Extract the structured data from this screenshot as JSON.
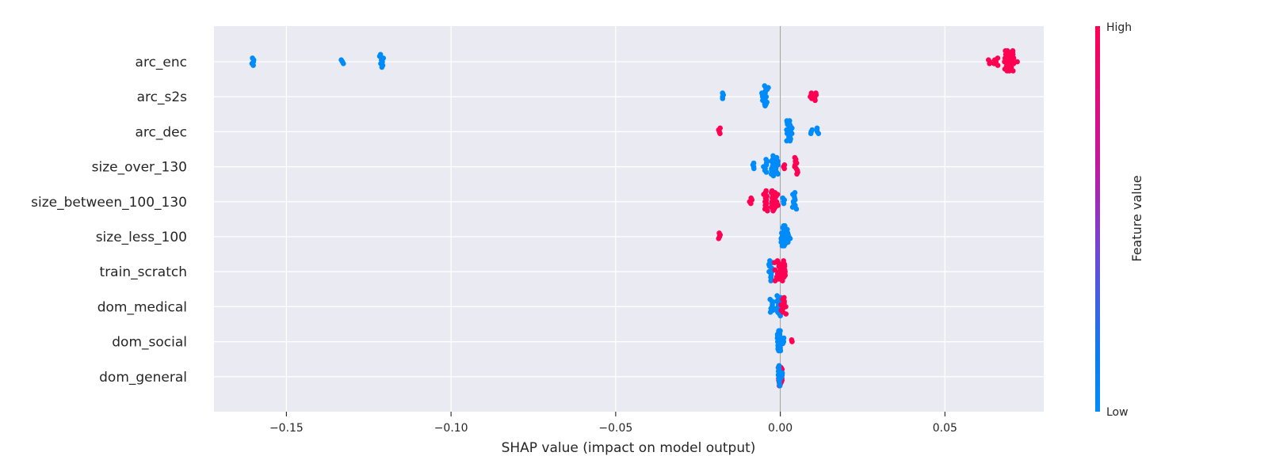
{
  "chart_data": {
    "type": "scatter",
    "subtype": "shap-beeswarm",
    "title": "",
    "xlabel": "SHAP value (impact on model output)",
    "ylabel": "",
    "xlim": [
      -0.172,
      0.08
    ],
    "x_ticks": [
      -0.15,
      -0.1,
      -0.05,
      0.0,
      0.05
    ],
    "x_tick_labels": [
      "−0.15",
      "−0.10",
      "−0.05",
      "0.00",
      "0.05"
    ],
    "grid": true,
    "features": [
      {
        "name": "arc_enc",
        "clusters": [
          {
            "x": -0.16,
            "v": "low",
            "n": 5,
            "spread": 0.0006
          },
          {
            "x": -0.133,
            "v": "low",
            "n": 3,
            "spread": 0.0004
          },
          {
            "x": -0.121,
            "v": "low",
            "n": 8,
            "spread": 0.0008
          },
          {
            "x": 0.0635,
            "v": "high",
            "n": 3,
            "spread": 0.0004
          },
          {
            "x": 0.0655,
            "v": "high",
            "n": 5,
            "spread": 0.0006
          },
          {
            "x": 0.069,
            "v": "high",
            "n": 40,
            "spread": 0.0012
          }
        ]
      },
      {
        "name": "arc_s2s",
        "clusters": [
          {
            "x": -0.0175,
            "v": "low",
            "n": 4,
            "spread": 0.0003
          },
          {
            "x": -0.005,
            "v": "low",
            "n": 22,
            "spread": 0.0008
          },
          {
            "x": 0.0095,
            "v": "high",
            "n": 4,
            "spread": 0.0004
          },
          {
            "x": 0.0105,
            "v": "high",
            "n": 5,
            "spread": 0.0004
          }
        ]
      },
      {
        "name": "arc_dec",
        "clusters": [
          {
            "x": -0.0185,
            "v": "high",
            "n": 4,
            "spread": 0.0003
          },
          {
            "x": 0.0025,
            "v": "low",
            "n": 24,
            "spread": 0.0006
          },
          {
            "x": 0.0095,
            "v": "low",
            "n": 3,
            "spread": 0.0003
          },
          {
            "x": 0.0115,
            "v": "low",
            "n": 4,
            "spread": 0.0004
          }
        ]
      },
      {
        "name": "size_over_130",
        "clusters": [
          {
            "x": -0.008,
            "v": "low",
            "n": 4,
            "spread": 0.0004
          },
          {
            "x": -0.0045,
            "v": "low",
            "n": 8,
            "spread": 0.0006
          },
          {
            "x": -0.002,
            "v": "low",
            "n": 22,
            "spread": 0.0008
          },
          {
            "x": 0.001,
            "v": "high",
            "n": 3,
            "spread": 0.0003
          },
          {
            "x": 0.0045,
            "v": "high",
            "n": 10,
            "spread": 0.0008
          }
        ]
      },
      {
        "name": "size_between_100_130",
        "clusters": [
          {
            "x": -0.009,
            "v": "high",
            "n": 4,
            "spread": 0.0004
          },
          {
            "x": -0.0045,
            "v": "high",
            "n": 12,
            "spread": 0.0006
          },
          {
            "x": -0.002,
            "v": "high",
            "n": 22,
            "spread": 0.0008
          },
          {
            "x": 0.001,
            "v": "low",
            "n": 4,
            "spread": 0.0003
          },
          {
            "x": 0.0045,
            "v": "low",
            "n": 10,
            "spread": 0.0008
          }
        ]
      },
      {
        "name": "size_less_100",
        "clusters": [
          {
            "x": -0.0185,
            "v": "high",
            "n": 4,
            "spread": 0.0003
          },
          {
            "x": 0.001,
            "v": "low",
            "n": 30,
            "spread": 0.0008
          }
        ]
      },
      {
        "name": "train_scratch",
        "clusters": [
          {
            "x": -0.003,
            "v": "low",
            "n": 14,
            "spread": 0.0006
          },
          {
            "x": -0.0005,
            "v": "high",
            "n": 22,
            "spread": 0.0015
          },
          {
            "x": 0.001,
            "v": "high",
            "n": 14,
            "spread": 0.0005
          }
        ]
      },
      {
        "name": "dom_medical",
        "clusters": [
          {
            "x": -0.0025,
            "v": "low",
            "n": 8,
            "spread": 0.0006
          },
          {
            "x": -0.0005,
            "v": "low",
            "n": 18,
            "spread": 0.0007
          },
          {
            "x": 0.001,
            "v": "high",
            "n": 10,
            "spread": 0.0008
          }
        ]
      },
      {
        "name": "dom_social",
        "clusters": [
          {
            "x": -0.0005,
            "v": "low",
            "n": 28,
            "spread": 0.0004
          },
          {
            "x": 0.0035,
            "v": "high",
            "n": 2,
            "spread": 0.0002
          }
        ]
      },
      {
        "name": "dom_general",
        "clusters": [
          {
            "x": -0.0003,
            "v": "high",
            "n": 22,
            "spread": 0.0004
          },
          {
            "x": -0.0003,
            "v": "low",
            "n": 16,
            "spread": 0.0003
          }
        ]
      }
    ],
    "colorbar": {
      "title": "Feature value",
      "high_label": "High",
      "low_label": "Low",
      "colors": [
        "#008bfb",
        "#7a41d6",
        "#ff0052"
      ]
    },
    "colors": {
      "low": "#008bfb",
      "high": "#ff0052",
      "plot_bg": "#eaeaf2",
      "grid": "#ffffff",
      "zero_line": "#999999"
    }
  }
}
